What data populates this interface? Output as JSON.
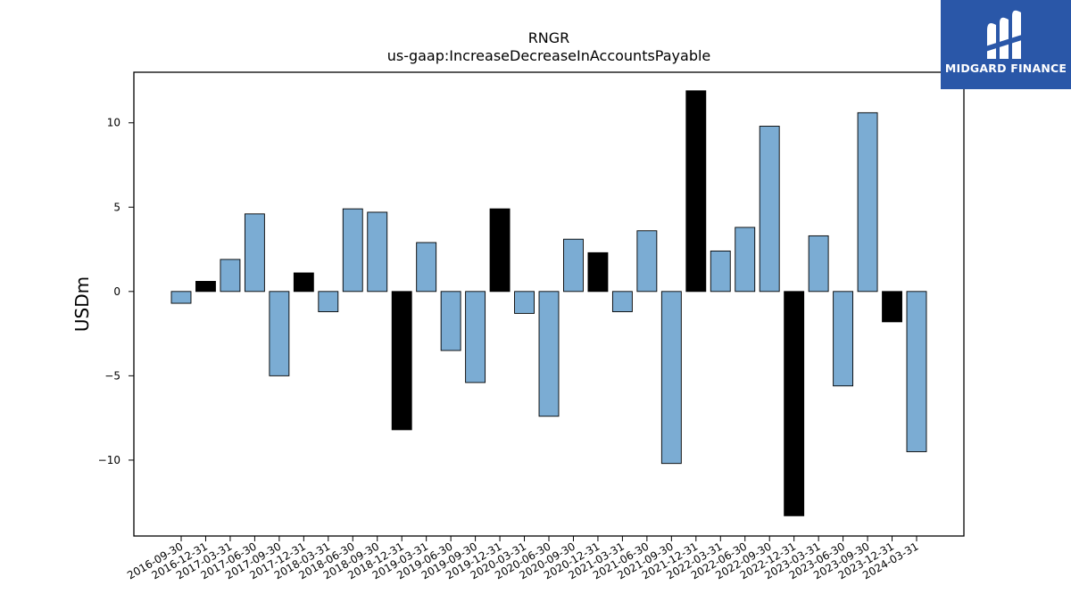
{
  "chart_data": {
    "type": "bar",
    "title": "RNGR",
    "subtitle": "us-gaap:IncreaseDecreaseInAccountsPayable",
    "ylabel": "USDm",
    "xlabel": "",
    "ylim": [
      -14.5,
      13
    ],
    "yticks": [
      -10,
      -5,
      0,
      5,
      10
    ],
    "grid": false,
    "categories": [
      "2016-09-30",
      "2016-12-31",
      "2017-03-31",
      "2017-06-30",
      "2017-09-30",
      "2017-12-31",
      "2018-03-31",
      "2018-06-30",
      "2018-09-30",
      "2018-12-31",
      "2019-03-31",
      "2019-06-30",
      "2019-09-30",
      "2019-12-31",
      "2020-03-31",
      "2020-06-30",
      "2020-09-30",
      "2020-12-31",
      "2021-03-31",
      "2021-06-30",
      "2021-09-30",
      "2021-12-31",
      "2022-03-31",
      "2022-06-30",
      "2022-09-30",
      "2022-12-31",
      "2023-03-31",
      "2023-06-30",
      "2023-09-30",
      "2023-12-31",
      "2024-03-31"
    ],
    "values": [
      -0.7,
      0.6,
      1.9,
      4.6,
      -5.0,
      1.1,
      -1.2,
      4.9,
      4.7,
      -8.2,
      2.9,
      -3.5,
      -5.4,
      4.9,
      -1.3,
      -7.4,
      3.1,
      2.3,
      -1.2,
      3.6,
      -10.2,
      11.9,
      2.4,
      3.8,
      9.8,
      -13.3,
      3.3,
      -5.6,
      10.6,
      -1.8,
      -9.5
    ],
    "quarter_end_highlight": [
      false,
      true,
      false,
      false,
      false,
      true,
      false,
      false,
      false,
      true,
      false,
      false,
      false,
      true,
      false,
      false,
      false,
      true,
      false,
      false,
      false,
      true,
      false,
      false,
      false,
      true,
      false,
      false,
      false,
      true,
      false
    ],
    "colors": {
      "regular": "#7bacd3",
      "year_end": "#000000",
      "edge": "#000000"
    }
  },
  "logo": {
    "text": "MIDGARD FINANCE",
    "background": "#2a57a8"
  }
}
